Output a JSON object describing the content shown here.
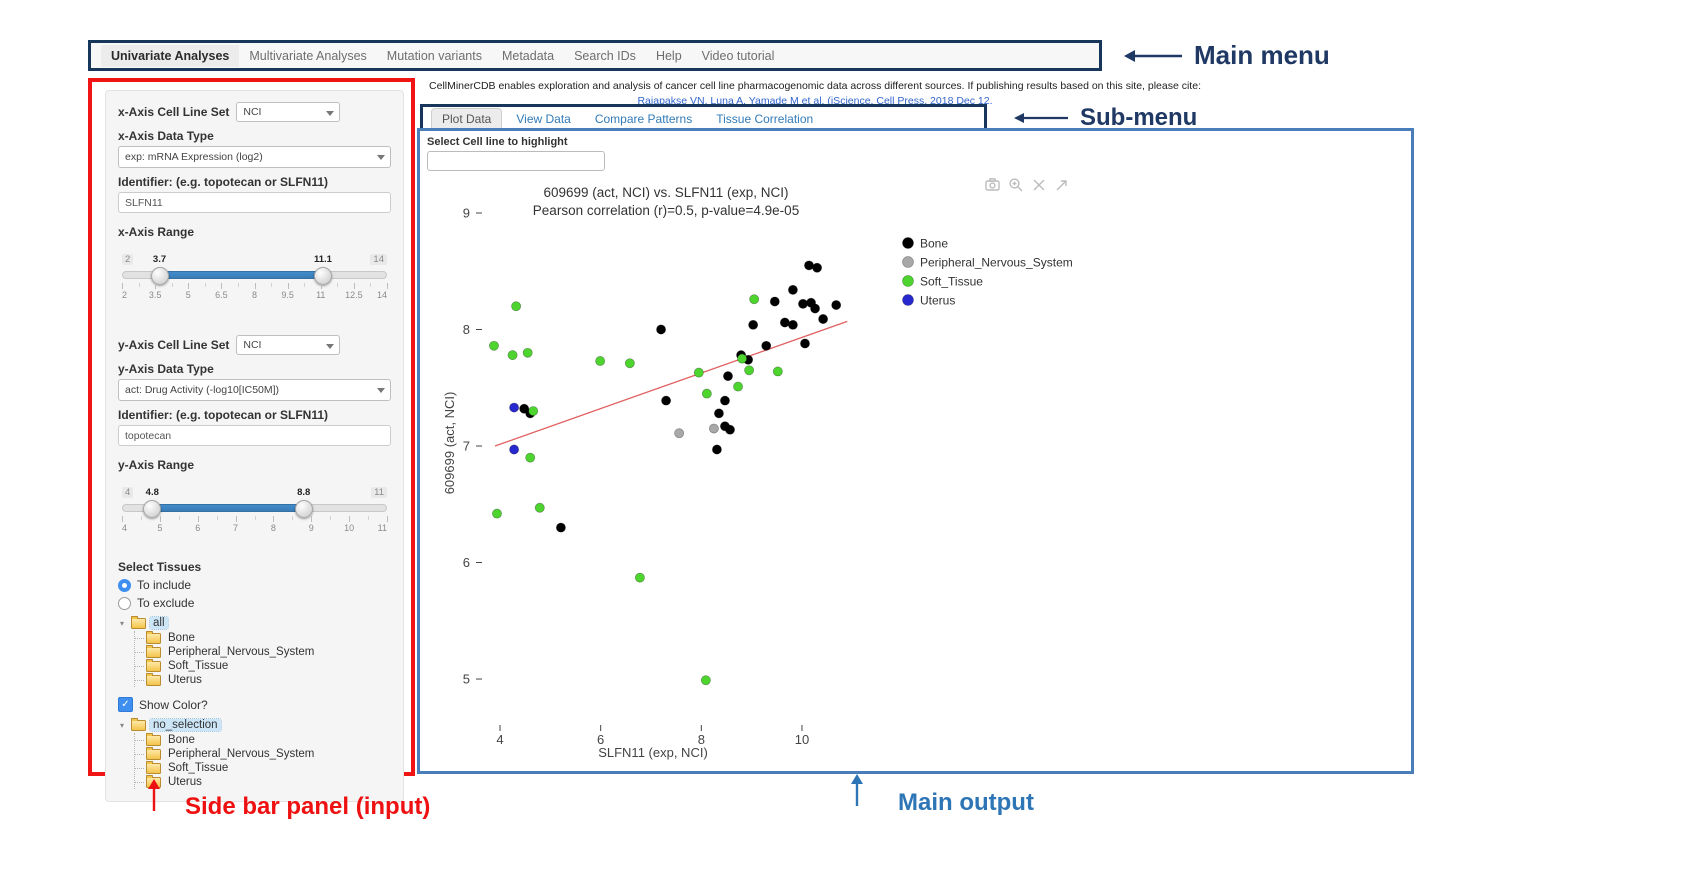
{
  "colors": {
    "annotation_navy": "#1f3864",
    "annotation_red": "#ee1111",
    "annotation_blue": "#2e75b6",
    "menu_box_border": "#16365c",
    "sidebar_box_border": "#f01414",
    "output_box_border": "#4a7ebb",
    "slider_bar": "#428bca",
    "link_blue": "#3366cc"
  },
  "main_menu": {
    "items": [
      {
        "label": "Univariate Analyses",
        "active": true
      },
      {
        "label": "Multivariate Analyses",
        "active": false
      },
      {
        "label": "Mutation variants",
        "active": false
      },
      {
        "label": "Metadata",
        "active": false
      },
      {
        "label": "Search IDs",
        "active": false
      },
      {
        "label": "Help",
        "active": false
      },
      {
        "label": "Video tutorial",
        "active": false
      }
    ]
  },
  "annotations": {
    "main_menu": "Main menu",
    "sub_menu": "Sub-menu",
    "sidebar": "Side bar panel (input)",
    "main_output": "Main output"
  },
  "citation": {
    "line1": "CellMinerCDB enables exploration and analysis of cancer cell line pharmacogenomic data across different sources. If publishing results based on this site, please cite:",
    "link": "Rajapakse VN, Luna A, Yamade M et al. (iScience, Cell Press, 2018 Dec 12."
  },
  "sidebar": {
    "x_axis": {
      "cell_line_set_label": "x-Axis Cell Line Set",
      "cell_line_set_value": "NCI",
      "data_type_label": "x-Axis Data Type",
      "data_type_value": "exp: mRNA Expression (log2)",
      "identifier_label": "Identifier: (e.g. topotecan or SLFN11)",
      "identifier_value": "SLFN11",
      "range_label": "x-Axis Range",
      "slider": {
        "min": 2,
        "max": 14,
        "from": 3.7,
        "to": 11.1,
        "grid": [
          "2",
          "3.5",
          "5",
          "6.5",
          "8",
          "9.5",
          "11",
          "12.5",
          "14"
        ]
      }
    },
    "y_axis": {
      "cell_line_set_label": "y-Axis Cell Line Set",
      "cell_line_set_value": "NCI",
      "data_type_label": "y-Axis Data Type",
      "data_type_value": "act: Drug Activity (-log10[IC50M])",
      "identifier_label": "Identifier: (e.g. topotecan or SLFN11)",
      "identifier_value": "topotecan",
      "range_label": "y-Axis Range",
      "slider": {
        "min": 4,
        "max": 11,
        "from": 4.8,
        "to": 8.8,
        "grid": [
          "4",
          "5",
          "6",
          "7",
          "8",
          "9",
          "10",
          "11"
        ]
      }
    },
    "select_tissues": {
      "label": "Select Tissues",
      "options": [
        {
          "label": "To include",
          "selected": true
        },
        {
          "label": "To exclude",
          "selected": false
        }
      ]
    },
    "tissue_tree": {
      "root": "all",
      "children": [
        "Bone",
        "Peripheral_Nervous_System",
        "Soft_Tissue",
        "Uterus"
      ]
    },
    "show_color": {
      "label": "Show Color?",
      "checked": true
    },
    "color_tree": {
      "root": "no_selection",
      "children": [
        "Bone",
        "Peripheral_Nervous_System",
        "Soft_Tissue",
        "Uterus"
      ]
    }
  },
  "submenu": {
    "tabs": [
      {
        "label": "Plot Data",
        "active": true
      },
      {
        "label": "View Data",
        "active": false
      },
      {
        "label": "Compare Patterns",
        "active": false
      },
      {
        "label": "Tissue Correlation",
        "active": false
      }
    ]
  },
  "main_output": {
    "highlight_label": "Select Cell line to highlight",
    "highlight_value": ""
  },
  "chart_data": {
    "type": "scatter",
    "title": "609699 (act, NCI) vs. SLFN11 (exp, NCI)",
    "subtitle": "Pearson correlation (r)=0.5, p-value=4.9e-05",
    "xlabel": "SLFN11 (exp, NCI)",
    "ylabel": "609699 (act, NCI)",
    "xlim": [
      3.66,
      11.01
    ],
    "ylim": [
      4.62,
      9.09
    ],
    "xticks": [
      4,
      6,
      8,
      10
    ],
    "yticks": [
      5,
      6,
      7,
      8,
      9
    ],
    "grid": false,
    "legend_position": "right",
    "series": [
      {
        "name": "Bone",
        "color": "#000000",
        "points": [
          [
            10.14,
            8.55
          ],
          [
            10.3,
            8.53
          ],
          [
            9.82,
            8.34
          ],
          [
            9.46,
            8.24
          ],
          [
            10.02,
            8.22
          ],
          [
            10.18,
            8.23
          ],
          [
            10.26,
            8.18
          ],
          [
            10.68,
            8.21
          ],
          [
            10.42,
            8.09
          ],
          [
            9.03,
            8.04
          ],
          [
            7.2,
            8.0
          ],
          [
            9.66,
            8.06
          ],
          [
            9.82,
            8.04
          ],
          [
            10.06,
            7.88
          ],
          [
            9.29,
            7.86
          ],
          [
            8.93,
            7.74
          ],
          [
            8.79,
            7.78
          ],
          [
            8.53,
            7.6
          ],
          [
            8.47,
            7.39
          ],
          [
            7.3,
            7.39
          ],
          [
            8.35,
            7.28
          ],
          [
            8.47,
            7.17
          ],
          [
            8.57,
            7.14
          ],
          [
            8.31,
            6.97
          ],
          [
            4.48,
            7.32
          ],
          [
            4.6,
            7.28
          ],
          [
            5.21,
            6.3
          ]
        ]
      },
      {
        "name": "Peripheral_Nervous_System",
        "color": "#a8a8a8",
        "points": [
          [
            7.56,
            7.11
          ],
          [
            8.25,
            7.15
          ]
        ]
      },
      {
        "name": "Soft_Tissue",
        "color": "#4dd42e",
        "points": [
          [
            4.32,
            8.2
          ],
          [
            3.88,
            7.86
          ],
          [
            4.55,
            7.8
          ],
          [
            4.25,
            7.78
          ],
          [
            5.99,
            7.73
          ],
          [
            6.58,
            7.71
          ],
          [
            7.95,
            7.63
          ],
          [
            9.05,
            8.26
          ],
          [
            8.81,
            7.75
          ],
          [
            8.95,
            7.65
          ],
          [
            9.52,
            7.64
          ],
          [
            8.73,
            7.51
          ],
          [
            8.11,
            7.45
          ],
          [
            4.66,
            7.3
          ],
          [
            4.6,
            6.9
          ],
          [
            3.94,
            6.42
          ],
          [
            4.79,
            6.47
          ],
          [
            6.78,
            5.87
          ],
          [
            8.09,
            4.99
          ]
        ]
      },
      {
        "name": "Uterus",
        "color": "#2828cf",
        "points": [
          [
            4.28,
            7.33
          ],
          [
            4.28,
            6.97
          ]
        ]
      }
    ],
    "trendline": {
      "x1": 3.9,
      "y1": 7.0,
      "x2": 10.9,
      "y2": 8.07,
      "color": "#e06060"
    }
  }
}
